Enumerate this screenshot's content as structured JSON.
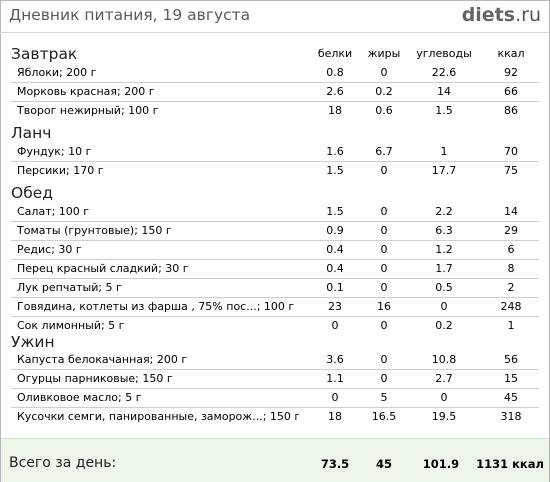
{
  "header": {
    "title": "Дневник питания, 19 августа",
    "logo_main": "diets",
    "logo_tld": ".ru"
  },
  "columns": {
    "protein": "белки",
    "fat": "жиры",
    "carbs": "углеводы",
    "kcal": "ккал"
  },
  "sections": [
    {
      "title": "Завтрак",
      "items": [
        {
          "name": "Яблоки; 200 г",
          "protein": "0.8",
          "fat": "0",
          "carbs": "22.6",
          "kcal": "92"
        },
        {
          "name": "Морковь красная; 200 г",
          "protein": "2.6",
          "fat": "0.2",
          "carbs": "14",
          "kcal": "66"
        },
        {
          "name": "Творог нежирный; 100 г",
          "protein": "18",
          "fat": "0.6",
          "carbs": "1.5",
          "kcal": "86"
        }
      ]
    },
    {
      "title": "Ланч",
      "items": [
        {
          "name": "Фундук; 10 г",
          "protein": "1.6",
          "fat": "6.7",
          "carbs": "1",
          "kcal": "70"
        },
        {
          "name": "Персики; 170 г",
          "protein": "1.5",
          "fat": "0",
          "carbs": "17.7",
          "kcal": "75"
        }
      ]
    },
    {
      "title": "Обед",
      "items": [
        {
          "name": "Салат; 100 г",
          "protein": "1.5",
          "fat": "0",
          "carbs": "2.2",
          "kcal": "14"
        },
        {
          "name": "Томаты (грунтовые); 150 г",
          "protein": "0.9",
          "fat": "0",
          "carbs": "6.3",
          "kcal": "29"
        },
        {
          "name": "Редис; 30 г",
          "protein": "0.4",
          "fat": "0",
          "carbs": "1.2",
          "kcal": "6"
        },
        {
          "name": "Перец красный сладкий; 30 г",
          "protein": "0.4",
          "fat": "0",
          "carbs": "1.7",
          "kcal": "8"
        },
        {
          "name": "Лук репчатый; 5 г",
          "protein": "0.1",
          "fat": "0",
          "carbs": "0.5",
          "kcal": "2"
        },
        {
          "name": "Говядина, котлеты из фарша , 75% пос...; 100 г",
          "protein": "23",
          "fat": "16",
          "carbs": "0",
          "kcal": "248"
        },
        {
          "name": "Сок лимонный; 5 г",
          "protein": "0",
          "fat": "0",
          "carbs": "0.2",
          "kcal": "1"
        }
      ]
    },
    {
      "title": "Ужин",
      "items": [
        {
          "name": "Капуста белокачанная; 200 г",
          "protein": "3.6",
          "fat": "0",
          "carbs": "10.8",
          "kcal": "56"
        },
        {
          "name": "Огурцы парниковые; 150 г",
          "protein": "1.1",
          "fat": "0",
          "carbs": "2.7",
          "kcal": "15"
        },
        {
          "name": "Оливковое масло; 5 г",
          "protein": "0",
          "fat": "5",
          "carbs": "0",
          "kcal": "45"
        },
        {
          "name": "Кусочки семги, панированные, заморож...; 150 г",
          "protein": "18",
          "fat": "16.5",
          "carbs": "19.5",
          "kcal": "318"
        }
      ]
    }
  ],
  "totals": {
    "label": "Всего за день:",
    "protein": "73.5",
    "fat": "45",
    "carbs": "101.9",
    "kcal": "1131 ккал"
  }
}
